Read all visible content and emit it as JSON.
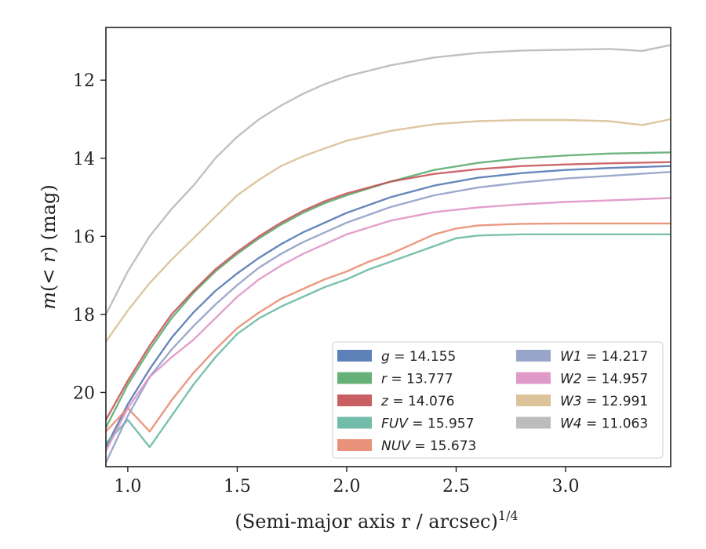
{
  "chart_data": {
    "type": "line",
    "title": "",
    "xlabel": "(Semi-major axis r / arcsec)",
    "xlabel_exponent": "1/4",
    "ylabel_parts": {
      "m": "m",
      "open": "(",
      "lt": "< ",
      "r": "r",
      "close": ") (mag)"
    },
    "xlim": [
      0.9,
      3.48
    ],
    "ylim": [
      21.9,
      10.65
    ],
    "y_inverted": true,
    "grid": false,
    "legend_position": "lower-right",
    "x_ticks": [
      1.0,
      1.5,
      2.0,
      2.5,
      3.0
    ],
    "x_tick_labels": [
      "1.0",
      "1.5",
      "2.0",
      "2.5",
      "3.0"
    ],
    "y_ticks": [
      12,
      14,
      16,
      18,
      20
    ],
    "y_tick_labels": [
      "12",
      "14",
      "16",
      "18",
      "20"
    ],
    "series": [
      {
        "name": "g",
        "value_label": "14.155",
        "color": "#4c72b0",
        "x": [
          0.9,
          1.0,
          1.1,
          1.2,
          1.3,
          1.4,
          1.5,
          1.6,
          1.7,
          1.8,
          1.9,
          2.0,
          2.2,
          2.4,
          2.6,
          2.8,
          3.0,
          3.2,
          3.48
        ],
        "y": [
          21.4,
          20.3,
          19.4,
          18.6,
          17.95,
          17.4,
          16.95,
          16.55,
          16.2,
          15.9,
          15.65,
          15.4,
          15.0,
          14.7,
          14.5,
          14.38,
          14.3,
          14.25,
          14.2
        ]
      },
      {
        "name": "r",
        "value_label": "13.777",
        "color": "#55a868",
        "x": [
          0.9,
          1.0,
          1.1,
          1.2,
          1.3,
          1.4,
          1.5,
          1.6,
          1.7,
          1.8,
          1.9,
          2.0,
          2.2,
          2.4,
          2.6,
          2.8,
          3.0,
          3.2,
          3.48
        ],
        "y": [
          20.9,
          19.8,
          18.9,
          18.1,
          17.45,
          16.9,
          16.45,
          16.05,
          15.7,
          15.4,
          15.15,
          14.95,
          14.6,
          14.3,
          14.12,
          14.0,
          13.93,
          13.88,
          13.85
        ]
      },
      {
        "name": "z",
        "value_label": "14.076",
        "color": "#c44e52",
        "x": [
          0.9,
          1.0,
          1.1,
          1.2,
          1.3,
          1.4,
          1.5,
          1.6,
          1.7,
          1.8,
          1.9,
          2.0,
          2.2,
          2.4,
          2.6,
          2.8,
          3.0,
          3.2,
          3.48
        ],
        "y": [
          20.7,
          19.7,
          18.8,
          18.0,
          17.4,
          16.85,
          16.4,
          16.0,
          15.65,
          15.35,
          15.1,
          14.9,
          14.6,
          14.4,
          14.28,
          14.2,
          14.16,
          14.13,
          14.1
        ]
      },
      {
        "name": "FUV",
        "value_label": "15.957",
        "color": "#64b5a0",
        "x": [
          0.9,
          1.0,
          1.1,
          1.2,
          1.3,
          1.4,
          1.5,
          1.6,
          1.7,
          1.8,
          1.9,
          2.0,
          2.1,
          2.2,
          2.3,
          2.4,
          2.5,
          2.6,
          2.8,
          3.0,
          3.2,
          3.48
        ],
        "y": [
          21.3,
          20.7,
          21.4,
          20.6,
          19.8,
          19.1,
          18.5,
          18.1,
          17.8,
          17.55,
          17.3,
          17.1,
          16.85,
          16.65,
          16.45,
          16.25,
          16.05,
          15.98,
          15.95,
          15.95,
          15.95,
          15.95
        ]
      },
      {
        "name": "NUV",
        "value_label": "15.673",
        "color": "#e8866a",
        "x": [
          0.9,
          1.0,
          1.1,
          1.2,
          1.3,
          1.4,
          1.5,
          1.6,
          1.7,
          1.8,
          1.9,
          2.0,
          2.1,
          2.2,
          2.3,
          2.4,
          2.5,
          2.6,
          2.8,
          3.0,
          3.2,
          3.48
        ],
        "y": [
          21.0,
          20.4,
          21.0,
          20.2,
          19.5,
          18.9,
          18.35,
          17.95,
          17.6,
          17.35,
          17.1,
          16.9,
          16.65,
          16.45,
          16.2,
          15.95,
          15.8,
          15.72,
          15.68,
          15.67,
          15.67,
          15.67
        ]
      },
      {
        "name": "W1",
        "value_label": "14.217",
        "color": "#8c9bc4",
        "x": [
          0.9,
          1.0,
          1.1,
          1.2,
          1.3,
          1.4,
          1.5,
          1.6,
          1.7,
          1.8,
          1.9,
          2.0,
          2.2,
          2.4,
          2.6,
          2.8,
          3.0,
          3.2,
          3.48
        ],
        "y": [
          21.8,
          20.6,
          19.6,
          18.9,
          18.3,
          17.75,
          17.25,
          16.8,
          16.45,
          16.15,
          15.9,
          15.65,
          15.25,
          14.95,
          14.75,
          14.62,
          14.52,
          14.45,
          14.35
        ]
      },
      {
        "name": "W2",
        "value_label": "14.957",
        "color": "#dd8fc4",
        "x": [
          0.9,
          1.0,
          1.1,
          1.2,
          1.3,
          1.4,
          1.5,
          1.6,
          1.7,
          1.8,
          1.9,
          2.0,
          2.2,
          2.4,
          2.6,
          2.8,
          3.0,
          3.2,
          3.48
        ],
        "y": [
          21.5,
          20.4,
          19.6,
          19.1,
          18.65,
          18.1,
          17.55,
          17.1,
          16.75,
          16.45,
          16.2,
          15.95,
          15.6,
          15.38,
          15.26,
          15.18,
          15.12,
          15.08,
          15.02
        ]
      },
      {
        "name": "W3",
        "value_label": "12.991",
        "color": "#d8bc8f",
        "x": [
          0.9,
          1.0,
          1.1,
          1.2,
          1.3,
          1.4,
          1.5,
          1.6,
          1.7,
          1.8,
          1.9,
          2.0,
          2.2,
          2.4,
          2.6,
          2.8,
          3.0,
          3.2,
          3.35,
          3.48
        ],
        "y": [
          18.7,
          17.9,
          17.2,
          16.6,
          16.05,
          15.5,
          14.95,
          14.55,
          14.2,
          13.95,
          13.75,
          13.55,
          13.3,
          13.13,
          13.05,
          13.02,
          13.02,
          13.05,
          13.15,
          13.0
        ]
      },
      {
        "name": "W4",
        "value_label": "11.063",
        "color": "#b5b5b5",
        "x": [
          0.9,
          1.0,
          1.1,
          1.2,
          1.3,
          1.4,
          1.5,
          1.6,
          1.7,
          1.8,
          1.9,
          2.0,
          2.2,
          2.4,
          2.6,
          2.8,
          3.0,
          3.2,
          3.35,
          3.48
        ],
        "y": [
          18.0,
          16.9,
          16.0,
          15.3,
          14.7,
          14.0,
          13.45,
          13.0,
          12.65,
          12.35,
          12.1,
          11.9,
          11.62,
          11.42,
          11.3,
          11.24,
          11.22,
          11.2,
          11.25,
          11.1
        ]
      }
    ]
  }
}
